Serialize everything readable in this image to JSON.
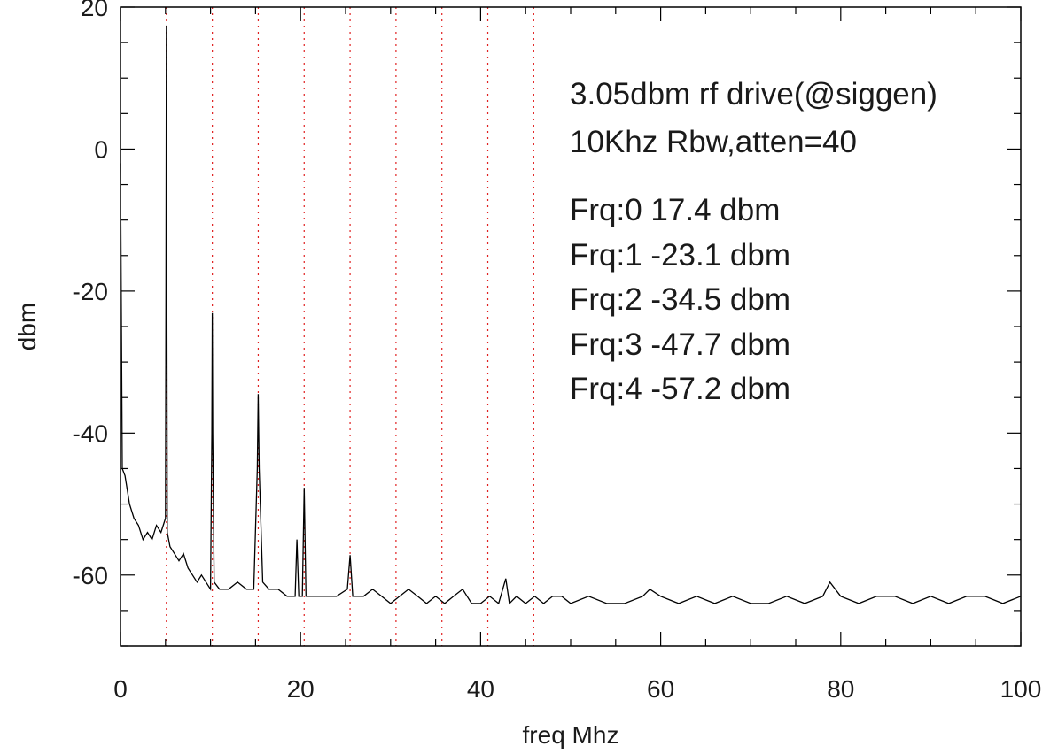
{
  "chart_data": {
    "type": "line",
    "xlabel": "freq Mhz",
    "ylabel": "dbm",
    "xlim": [
      0,
      100
    ],
    "ylim": [
      -70,
      20
    ],
    "x_ticks": [
      0,
      20,
      40,
      60,
      80,
      100
    ],
    "y_ticks": [
      -60,
      -40,
      -20,
      0,
      20
    ],
    "x_tick_labels": [
      "0",
      "20",
      "40",
      "60",
      "80",
      "100"
    ],
    "y_tick_labels": [
      "-60",
      "-40",
      "-20",
      "0",
      "20"
    ],
    "x_minor_step": 5,
    "y_minor_step": 5,
    "grid": false,
    "line_color": "#000000",
    "marker_color": "#e02020",
    "annotations": [
      "3.05dbm rf drive(@siggen)",
      "10Khz Rbw,atten=40",
      "Frq:0  17.4 dbm",
      "Frq:1 -23.1 dbm",
      "Frq:2 -34.5 dbm",
      "Frq:3 -47.7 dbm",
      "Frq:4 -57.2 dbm"
    ],
    "marker_lines_x": [
      5.1,
      10.2,
      15.3,
      20.4,
      25.5,
      30.6,
      35.7,
      40.8,
      45.9
    ],
    "series": [
      {
        "values_x": [
          0,
          0.2,
          0.5,
          1,
          1.5,
          2,
          2.5,
          3,
          3.5,
          4,
          4.5,
          5,
          5.05,
          5.1,
          5.15,
          5.2,
          5.5,
          6,
          6.5,
          7,
          7.5,
          8,
          8.5,
          9,
          9.5,
          10,
          10.15,
          10.2,
          10.25,
          10.4,
          11,
          12,
          13,
          14,
          14.8,
          15.2,
          15.3,
          15.4,
          15.8,
          16.5,
          17.5,
          18.5,
          19.4,
          19.6,
          19.8,
          20.2,
          20.4,
          20.6,
          21,
          22,
          23,
          24,
          25.2,
          25.5,
          25.8,
          27,
          28,
          29,
          30,
          31,
          32,
          33,
          34,
          35,
          36,
          37,
          38,
          39,
          40,
          41,
          42,
          42.8,
          43.2,
          44,
          45,
          46,
          47,
          48,
          49,
          50,
          52,
          54,
          56,
          58,
          58.8,
          60,
          62,
          64,
          66,
          68,
          70,
          72,
          74,
          76,
          78,
          78.8,
          80,
          82,
          84,
          86,
          88,
          90,
          92,
          94,
          96,
          98,
          100
        ],
        "values_y": [
          -2,
          -45,
          -46,
          -50,
          -52,
          -53,
          -55,
          -54,
          -55,
          -53,
          -54,
          -52,
          -20,
          17.4,
          -20,
          -54,
          -56,
          -57,
          -58,
          -57,
          -59,
          -60,
          -61,
          -60,
          -61,
          -62,
          -40,
          -23.1,
          -40,
          -61,
          -62,
          -62,
          -61,
          -62,
          -62,
          -45,
          -34.5,
          -45,
          -61,
          -62,
          -62,
          -63,
          -63,
          -55,
          -63,
          -63,
          -47.7,
          -63,
          -63,
          -63,
          -63,
          -63,
          -62,
          -57.2,
          -63,
          -63,
          -62,
          -63,
          -64,
          -63,
          -62,
          -63,
          -64,
          -63,
          -64,
          -63,
          -62,
          -64,
          -64,
          -63,
          -64,
          -60.5,
          -64,
          -63,
          -64,
          -63,
          -64,
          -63,
          -63,
          -64,
          -63,
          -64,
          -64,
          -63,
          -62,
          -63,
          -64,
          -63,
          -64,
          -63,
          -64,
          -64,
          -63,
          -64,
          -63,
          -61,
          -63,
          -64,
          -63,
          -63,
          -64,
          -63,
          -64,
          -63,
          -63,
          -64,
          -63
        ]
      }
    ]
  }
}
